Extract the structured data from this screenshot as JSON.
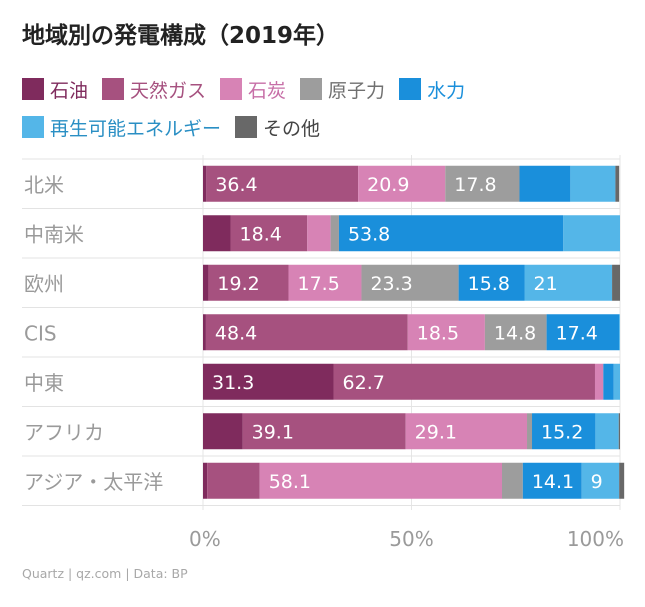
{
  "title": "地域別の発電構成（2019年）",
  "legend": [
    {
      "label": "石油",
      "color": "#7f2b5d",
      "text_color": "#7f2b5d"
    },
    {
      "label": "天然ガス",
      "color": "#a6517f",
      "text_color": "#a6517f"
    },
    {
      "label": "石炭",
      "color": "#d783b5",
      "text_color": "#c76fa7"
    },
    {
      "label": "原子力",
      "color": "#9d9d9d",
      "text_color": "#707070"
    },
    {
      "label": "水力",
      "color": "#1a8fdb",
      "text_color": "#1a8fdb"
    },
    {
      "label": "再生可能エネルギー",
      "color": "#54b6e8",
      "text_color": "#2a8fc4"
    },
    {
      "label": "その他",
      "color": "#686868",
      "text_color": "#444444"
    }
  ],
  "chart_data": {
    "type": "stacked_bar_horizontal",
    "title": "地域別の発電構成（2019年）",
    "unit": "%",
    "xlim": [
      0,
      100
    ],
    "x_ticks": [
      "0%",
      "50%",
      "100%"
    ],
    "series_names": [
      "石油",
      "天然ガス",
      "石炭",
      "原子力",
      "水力",
      "再生可能エネルギー",
      "その他"
    ],
    "rows": [
      {
        "label": "北米",
        "values": [
          0.8,
          36.4,
          20.9,
          17.8,
          12.2,
          10.8,
          0.9
        ],
        "labels": [
          "",
          "36.4",
          "20.9",
          "17.8",
          "",
          "",
          ""
        ]
      },
      {
        "label": "中南米",
        "values": [
          6.6,
          18.4,
          5.6,
          2.0,
          53.8,
          13.6,
          0.0
        ],
        "labels": [
          "",
          "18.4",
          "",
          "",
          "53.8",
          "",
          ""
        ]
      },
      {
        "label": "欧州",
        "values": [
          1.3,
          19.2,
          17.5,
          23.3,
          15.8,
          21.0,
          1.9
        ],
        "labels": [
          "",
          "19.2",
          "17.5",
          "23.3",
          "15.8",
          "21",
          ""
        ]
      },
      {
        "label": "CIS",
        "values": [
          0.7,
          48.4,
          18.5,
          14.8,
          17.4,
          0.2,
          0.0
        ],
        "labels": [
          "",
          "48.4",
          "18.5",
          "14.8",
          "17.4",
          "",
          ""
        ]
      },
      {
        "label": "中東",
        "values": [
          31.3,
          62.7,
          2.0,
          0.0,
          2.5,
          1.5,
          0.0
        ],
        "labels": [
          "31.3",
          "62.7",
          "",
          "",
          "",
          "",
          ""
        ]
      },
      {
        "label": "アフリカ",
        "values": [
          9.5,
          39.1,
          29.1,
          1.2,
          15.2,
          5.6,
          0.3
        ],
        "labels": [
          "",
          "39.1",
          "29.1",
          "",
          "15.2",
          "",
          ""
        ]
      },
      {
        "label": "アジア・太平洋",
        "values": [
          1.0,
          12.6,
          58.1,
          5.0,
          14.1,
          9.0,
          1.2
        ],
        "labels": [
          "",
          "",
          "58.1",
          "",
          "14.1",
          "9",
          ""
        ]
      }
    ]
  },
  "source": "Quartz | qz.com | Data: BP"
}
